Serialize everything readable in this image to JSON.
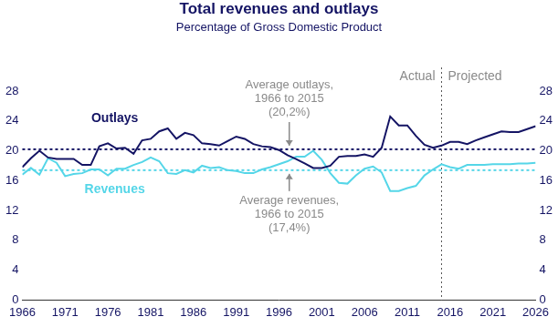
{
  "chart_data": {
    "type": "line",
    "title": "Total revenues and outlays",
    "subtitle": "Percentage of Gross Domestic Product",
    "x": [
      1966,
      1967,
      1968,
      1969,
      1970,
      1971,
      1972,
      1973,
      1974,
      1975,
      1976,
      1977,
      1978,
      1979,
      1980,
      1981,
      1982,
      1983,
      1984,
      1985,
      1986,
      1987,
      1988,
      1989,
      1990,
      1991,
      1992,
      1993,
      1994,
      1995,
      1996,
      1997,
      1998,
      1999,
      2000,
      2001,
      2002,
      2003,
      2004,
      2005,
      2006,
      2007,
      2008,
      2009,
      2010,
      2011,
      2012,
      2013,
      2014,
      2015,
      2016,
      2017,
      2018,
      2019,
      2020,
      2021,
      2022,
      2023,
      2024,
      2025,
      2026
    ],
    "series": [
      {
        "name": "Outlays",
        "color": "#141464",
        "values": [
          17.8,
          19.0,
          20.0,
          19.1,
          18.9,
          18.9,
          18.9,
          18.1,
          18.1,
          20.6,
          21.0,
          20.3,
          20.4,
          19.6,
          21.4,
          21.6,
          22.6,
          23.0,
          21.6,
          22.4,
          22.1,
          21.0,
          20.9,
          20.7,
          21.3,
          21.9,
          21.6,
          20.9,
          20.6,
          20.5,
          20.1,
          19.4,
          18.9,
          18.3,
          17.7,
          17.7,
          18.0,
          19.2,
          19.3,
          19.3,
          19.5,
          19.2,
          20.4,
          24.6,
          23.4,
          23.4,
          22.0,
          20.8,
          20.4,
          20.7,
          21.2,
          21.2,
          20.9,
          21.4,
          21.8,
          22.2,
          22.6,
          22.5,
          22.5,
          22.9,
          23.3
        ]
      },
      {
        "name": "Revenues",
        "color": "#55d6e8",
        "values": [
          16.8,
          17.7,
          16.8,
          19.0,
          18.4,
          16.6,
          16.9,
          17.0,
          17.5,
          17.5,
          16.7,
          17.6,
          17.6,
          18.1,
          18.5,
          19.1,
          18.6,
          17.0,
          16.9,
          17.4,
          17.1,
          18.0,
          17.7,
          17.8,
          17.4,
          17.3,
          17.0,
          17.0,
          17.5,
          17.8,
          18.2,
          18.6,
          19.2,
          19.2,
          20.0,
          18.8,
          17.0,
          15.7,
          15.6,
          16.7,
          17.6,
          17.9,
          17.1,
          14.6,
          14.6,
          15.0,
          15.3,
          16.7,
          17.5,
          18.2,
          17.8,
          17.6,
          18.1,
          18.1,
          18.1,
          18.2,
          18.2,
          18.2,
          18.3,
          18.3,
          18.4
        ]
      }
    ],
    "xlim": [
      1966,
      2026
    ],
    "xticks": [
      1966,
      1971,
      1976,
      1981,
      1986,
      1991,
      1996,
      2001,
      2006,
      2011,
      2016,
      2021,
      2026
    ],
    "ylim": [
      0,
      28
    ],
    "yticks": [
      0,
      4,
      8,
      12,
      16,
      20,
      24,
      28
    ],
    "y2lim": [
      0,
      28
    ],
    "y2ticks": [
      0,
      4,
      8,
      12,
      16,
      20,
      24,
      28
    ],
    "grid": false,
    "reference_lines": [
      {
        "value": 20.2,
        "label": [
          "Average outlays,",
          "1966 to 2015",
          "(20,2%)"
        ],
        "color": "#141464"
      },
      {
        "value": 17.4,
        "label": [
          "Average revenues,",
          "1966 to 2015",
          "(17,4%)"
        ],
        "color": "#55d6e8"
      }
    ],
    "divider": {
      "x": 2015,
      "labels": [
        "Actual",
        "Projected"
      ]
    }
  }
}
